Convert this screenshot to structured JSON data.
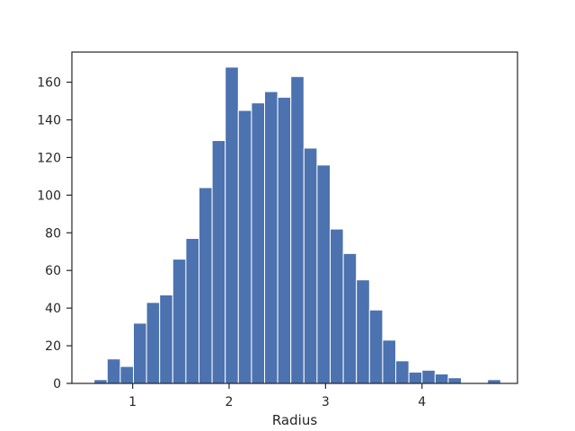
{
  "chart_data": {
    "type": "bar",
    "subtype": "histogram",
    "title": "",
    "xlabel": "Radius",
    "ylabel": "",
    "x_ticks": [
      "1",
      "2",
      "3",
      "4"
    ],
    "y_ticks": [
      "0",
      "20",
      "40",
      "60",
      "80",
      "100",
      "120",
      "140",
      "160"
    ],
    "xlim": [
      0.37,
      4.99
    ],
    "ylim": [
      0,
      176
    ],
    "grid": false,
    "legend": "none",
    "bar_color": "#4c72b0",
    "bin_edges": [
      0.6,
      0.736,
      0.872,
      1.008,
      1.144,
      1.28,
      1.416,
      1.552,
      1.688,
      1.824,
      1.96,
      2.096,
      2.232,
      2.368,
      2.504,
      2.64,
      2.776,
      2.912,
      3.048,
      3.184,
      3.32,
      3.456,
      3.592,
      3.728,
      3.864,
      4.0,
      4.136,
      4.272,
      4.408,
      4.544,
      4.68,
      4.816
    ],
    "counts": [
      2,
      13,
      9,
      32,
      43,
      47,
      66,
      77,
      104,
      129,
      168,
      145,
      149,
      155,
      152,
      163,
      125,
      116,
      82,
      69,
      55,
      39,
      23,
      12,
      6,
      7,
      5,
      3,
      0,
      0,
      2
    ]
  }
}
